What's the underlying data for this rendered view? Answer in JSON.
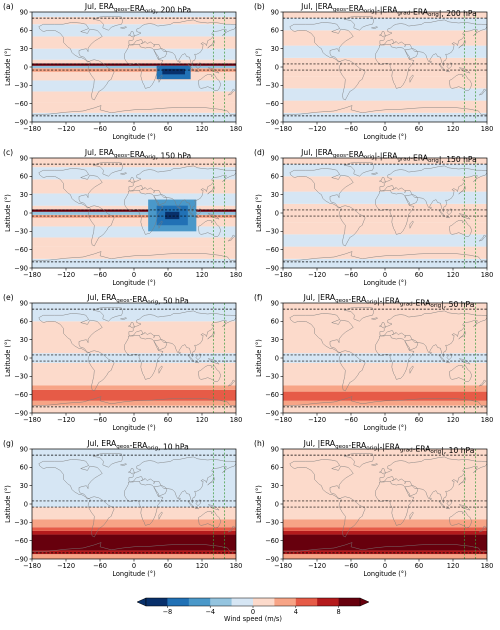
{
  "figure": {
    "colorbar": {
      "label": "Wind speed (m/s)",
      "ticks": [
        -8,
        -4,
        0,
        4,
        8
      ],
      "levels": [
        -10,
        -8,
        -6,
        -4,
        -2,
        0,
        2,
        4,
        6,
        8,
        10
      ],
      "colors": [
        "#08306b",
        "#2171b5",
        "#4a98c9",
        "#94c4df",
        "#d6e6f4",
        "#fcdacb",
        "#f7a486",
        "#e65b47",
        "#b41a1c",
        "#67000d"
      ],
      "extend": "both"
    }
  },
  "chart_data": [
    {
      "type": "heatmap",
      "panel": "(a)",
      "title": "Jul, ERA_geos-ERA_orig, 200 hPa",
      "xlabel": "Longitude (°)",
      "ylabel": "Latitude (°)",
      "xlim": [
        -180,
        180
      ],
      "ylim": [
        -90,
        90
      ],
      "xticks": [
        -180,
        -120,
        -60,
        0,
        60,
        120,
        180
      ],
      "yticks": [
        -90,
        -60,
        -30,
        0,
        30,
        60,
        90
      ],
      "lat_bands": [
        {
          "lat": [
            -90,
            -75
          ],
          "value": -1.2
        },
        {
          "lat": [
            -75,
            -58
          ],
          "value": 1.3
        },
        {
          "lat": [
            -58,
            -40
          ],
          "value": 1.0
        },
        {
          "lat": [
            -40,
            -22
          ],
          "value": -1.1
        },
        {
          "lat": [
            -22,
            -8
          ],
          "value": 1.3
        },
        {
          "lat": [
            -8,
            -2
          ],
          "value": 3.0
        },
        {
          "lat": [
            -2,
            2
          ],
          "value": -2.5
        },
        {
          "lat": [
            2,
            6
          ],
          "value": 9.0
        },
        {
          "lat": [
            6,
            12
          ],
          "value": 1.5
        },
        {
          "lat": [
            12,
            30
          ],
          "value": -1.2
        },
        {
          "lat": [
            30,
            50
          ],
          "value": 1.2
        },
        {
          "lat": [
            50,
            70
          ],
          "value": -1.1
        },
        {
          "lat": [
            70,
            82
          ],
          "value": 1.1
        },
        {
          "lat": [
            82,
            90
          ],
          "value": -1.1
        }
      ],
      "anomalies": [
        {
          "lon": [
            40,
            100
          ],
          "lat": [
            -20,
            2
          ],
          "value": -6.5
        },
        {
          "lon": [
            50,
            90
          ],
          "lat": [
            -12,
            -3
          ],
          "value": -9.5
        }
      ],
      "dashed_lat_lines": [
        -80,
        -5,
        5,
        80
      ],
      "dashed_lon_lines": [
        140,
        160
      ]
    },
    {
      "type": "heatmap",
      "panel": "(b)",
      "title": "Jul, |ERA_geos-ERA_orig|-|ERA_grad-ERA_orig|, 200 hPa",
      "xlabel": "Longitude (°)",
      "ylabel": "Latitude (°)",
      "xlim": [
        -180,
        180
      ],
      "ylim": [
        -90,
        90
      ],
      "xticks": [
        -180,
        -120,
        -60,
        0,
        60,
        120,
        180
      ],
      "yticks": [
        -90,
        -60,
        -30,
        0,
        30,
        60,
        90
      ],
      "lat_bands": [
        {
          "lat": [
            -90,
            -75
          ],
          "value": -1.1
        },
        {
          "lat": [
            -75,
            -55
          ],
          "value": 1.2
        },
        {
          "lat": [
            -55,
            -35
          ],
          "value": -1.0
        },
        {
          "lat": [
            -35,
            -15
          ],
          "value": 1.1
        },
        {
          "lat": [
            -15,
            15
          ],
          "value": 1.3
        },
        {
          "lat": [
            15,
            35
          ],
          "value": -1.0
        },
        {
          "lat": [
            35,
            60
          ],
          "value": 1.1
        },
        {
          "lat": [
            60,
            80
          ],
          "value": -1.1
        },
        {
          "lat": [
            80,
            90
          ],
          "value": 1.0
        }
      ],
      "anomalies": [],
      "dashed_lat_lines": [
        -80,
        -5,
        5,
        80
      ],
      "dashed_lon_lines": [
        140,
        160
      ]
    },
    {
      "type": "heatmap",
      "panel": "(c)",
      "title": "Jul, ERA_geos-ERA_orig, 150 hPa",
      "xlabel": "Longitude (°)",
      "ylabel": "Latitude (°)",
      "xlim": [
        -180,
        180
      ],
      "ylim": [
        -90,
        90
      ],
      "xticks": [
        -180,
        -120,
        -60,
        0,
        60,
        120,
        180
      ],
      "yticks": [
        -90,
        -60,
        -30,
        0,
        30,
        60,
        90
      ],
      "lat_bands": [
        {
          "lat": [
            -90,
            -75
          ],
          "value": -1.2
        },
        {
          "lat": [
            -75,
            -55
          ],
          "value": 1.2
        },
        {
          "lat": [
            -55,
            -40
          ],
          "value": 1.0
        },
        {
          "lat": [
            -40,
            -22
          ],
          "value": -1.1
        },
        {
          "lat": [
            -22,
            -8
          ],
          "value": 1.3
        },
        {
          "lat": [
            -8,
            -3
          ],
          "value": 3.0
        },
        {
          "lat": [
            -3,
            2
          ],
          "value": -2.5
        },
        {
          "lat": [
            2,
            6
          ],
          "value": 9.5
        },
        {
          "lat": [
            6,
            12
          ],
          "value": 1.4
        },
        {
          "lat": [
            12,
            32
          ],
          "value": -1.2
        },
        {
          "lat": [
            32,
            55
          ],
          "value": 1.2
        },
        {
          "lat": [
            55,
            75
          ],
          "value": -1.1
        },
        {
          "lat": [
            75,
            90
          ],
          "value": 1.1
        }
      ],
      "anomalies": [
        {
          "lon": [
            25,
            110
          ],
          "lat": [
            -30,
            22
          ],
          "value": -4.5
        },
        {
          "lon": [
            40,
            95
          ],
          "lat": [
            -20,
            12
          ],
          "value": -7.0
        },
        {
          "lon": [
            55,
            80
          ],
          "lat": [
            -10,
            2
          ],
          "value": -10.0
        }
      ],
      "dashed_lat_lines": [
        -80,
        -5,
        5,
        80
      ],
      "dashed_lon_lines": [
        140,
        160
      ]
    },
    {
      "type": "heatmap",
      "panel": "(d)",
      "title": "Jul, |ERA_geos-ERA_orig|-|ERA_grad-ERA_orig|, 150 hPa",
      "xlabel": "Longitude (°)",
      "ylabel": "Latitude (°)",
      "xlim": [
        -180,
        180
      ],
      "ylim": [
        -90,
        90
      ],
      "xticks": [
        -180,
        -120,
        -60,
        0,
        60,
        120,
        180
      ],
      "yticks": [
        -90,
        -60,
        -30,
        0,
        30,
        60,
        90
      ],
      "lat_bands": [
        {
          "lat": [
            -90,
            -75
          ],
          "value": -1.1
        },
        {
          "lat": [
            -75,
            -55
          ],
          "value": 1.2
        },
        {
          "lat": [
            -55,
            -35
          ],
          "value": -1.0
        },
        {
          "lat": [
            -35,
            -15
          ],
          "value": 1.1
        },
        {
          "lat": [
            -15,
            15
          ],
          "value": 1.2
        },
        {
          "lat": [
            15,
            35
          ],
          "value": -1.0
        },
        {
          "lat": [
            35,
            60
          ],
          "value": 1.1
        },
        {
          "lat": [
            60,
            80
          ],
          "value": -1.1
        },
        {
          "lat": [
            80,
            90
          ],
          "value": 1.0
        }
      ],
      "anomalies": [],
      "dashed_lat_lines": [
        -80,
        -5,
        5,
        80
      ],
      "dashed_lon_lines": [
        140,
        160
      ]
    },
    {
      "type": "heatmap",
      "panel": "(e)",
      "title": "Jul, ERA_geos-ERA_orig, 50 hPa",
      "xlabel": "Longitude (°)",
      "ylabel": "Latitude (°)",
      "xlim": [
        -180,
        180
      ],
      "ylim": [
        -90,
        90
      ],
      "xticks": [
        -180,
        -120,
        -60,
        0,
        60,
        120,
        180
      ],
      "yticks": [
        -90,
        -60,
        -30,
        0,
        30,
        60,
        90
      ],
      "lat_bands": [
        {
          "lat": [
            -90,
            -78
          ],
          "value": 1.1
        },
        {
          "lat": [
            -78,
            -70
          ],
          "value": 3.0
        },
        {
          "lat": [
            -70,
            -52
          ],
          "value": 5.0
        },
        {
          "lat": [
            -52,
            -45
          ],
          "value": 3.0
        },
        {
          "lat": [
            -45,
            -8
          ],
          "value": 1.1
        },
        {
          "lat": [
            -8,
            8
          ],
          "value": -1.0
        },
        {
          "lat": [
            8,
            60
          ],
          "value": 1.1
        },
        {
          "lat": [
            60,
            90
          ],
          "value": -1.0
        }
      ],
      "anomalies": [],
      "dashed_lat_lines": [
        -80,
        -5,
        5,
        80
      ],
      "dashed_lon_lines": [
        140,
        160
      ]
    },
    {
      "type": "heatmap",
      "panel": "(f)",
      "title": "Jul, |ERA_geos-ERA_orig|-|ERA_grad-ERA_orig|, 50 hPa",
      "xlabel": "Longitude (°)",
      "ylabel": "Latitude (°)",
      "xlim": [
        -180,
        180
      ],
      "ylim": [
        -90,
        90
      ],
      "xticks": [
        -180,
        -120,
        -60,
        0,
        60,
        120,
        180
      ],
      "yticks": [
        -90,
        -60,
        -30,
        0,
        30,
        60,
        90
      ],
      "lat_bands": [
        {
          "lat": [
            -90,
            -78
          ],
          "value": 1.1
        },
        {
          "lat": [
            -78,
            -70
          ],
          "value": 3.0
        },
        {
          "lat": [
            -70,
            -55
          ],
          "value": 4.5
        },
        {
          "lat": [
            -55,
            -45
          ],
          "value": 3.0
        },
        {
          "lat": [
            -45,
            -8
          ],
          "value": 1.1
        },
        {
          "lat": [
            -8,
            8
          ],
          "value": -1.0
        },
        {
          "lat": [
            8,
            90
          ],
          "value": 1.1
        }
      ],
      "anomalies": [],
      "dashed_lat_lines": [
        -80,
        -5,
        5,
        80
      ],
      "dashed_lon_lines": [
        140,
        160
      ]
    },
    {
      "type": "heatmap",
      "panel": "(g)",
      "title": "Jul, ERA_geos-ERA_orig, 10 hPa",
      "xlabel": "Longitude (°)",
      "ylabel": "Latitude (°)",
      "xlim": [
        -180,
        180
      ],
      "ylim": [
        -90,
        90
      ],
      "xticks": [
        -180,
        -120,
        -60,
        0,
        60,
        120,
        180
      ],
      "yticks": [
        -90,
        -60,
        -30,
        0,
        30,
        60,
        90
      ],
      "lat_bands": [
        {
          "lat": [
            -90,
            -82
          ],
          "value": 3.0
        },
        {
          "lat": [
            -82,
            -76
          ],
          "value": 6.5
        },
        {
          "lat": [
            -76,
            -50
          ],
          "value": 11.0
        },
        {
          "lat": [
            -50,
            -44
          ],
          "value": 7.0
        },
        {
          "lat": [
            -44,
            -38
          ],
          "value": 5.0
        },
        {
          "lat": [
            -38,
            -25
          ],
          "value": 3.0
        },
        {
          "lat": [
            -25,
            -5
          ],
          "value": 1.1
        },
        {
          "lat": [
            -5,
            90
          ],
          "value": -1.0
        }
      ],
      "anomalies": [],
      "dashed_lat_lines": [
        -80,
        -5,
        5,
        80
      ],
      "dashed_lon_lines": [
        140,
        160
      ]
    },
    {
      "type": "heatmap",
      "panel": "(h)",
      "title": "Jul, |ERA_geos-ERA_orig|-|ERA_grad-ERA_orig|, 10 hPa",
      "xlabel": "Longitude (°)",
      "ylabel": "Latitude (°)",
      "xlim": [
        -180,
        180
      ],
      "ylim": [
        -90,
        90
      ],
      "xticks": [
        -180,
        -120,
        -60,
        0,
        60,
        120,
        180
      ],
      "yticks": [
        -90,
        -60,
        -30,
        0,
        30,
        60,
        90
      ],
      "lat_bands": [
        {
          "lat": [
            -90,
            -82
          ],
          "value": 3.0
        },
        {
          "lat": [
            -82,
            -76
          ],
          "value": 6.5
        },
        {
          "lat": [
            -76,
            -50
          ],
          "value": 11.0
        },
        {
          "lat": [
            -50,
            -44
          ],
          "value": 7.0
        },
        {
          "lat": [
            -44,
            -38
          ],
          "value": 5.0
        },
        {
          "lat": [
            -38,
            -25
          ],
          "value": 3.0
        },
        {
          "lat": [
            -25,
            90
          ],
          "value": 1.1
        }
      ],
      "anomalies": [],
      "dashed_lat_lines": [
        -80,
        -5,
        5,
        80
      ],
      "dashed_lon_lines": [
        140,
        160
      ]
    }
  ]
}
